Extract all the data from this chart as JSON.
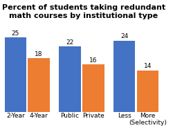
{
  "title": "Percent of students taking redundant\nmath courses by institutional type",
  "groups": [
    {
      "labels": [
        "2-Year",
        "4-Year"
      ],
      "values": [
        25,
        18
      ]
    },
    {
      "labels": [
        "Public",
        "Private"
      ],
      "values": [
        22,
        16
      ]
    },
    {
      "labels": [
        "Less",
        "More\n(Selectivity)"
      ],
      "values": [
        24,
        14
      ]
    }
  ],
  "bar_colors": [
    "#4472C4",
    "#ED7D31"
  ],
  "bar_width": 0.28,
  "ylim": [
    0,
    30
  ],
  "title_fontsize": 8.0,
  "label_fontsize": 6.5,
  "value_fontsize": 6.5,
  "background_color": "#ffffff",
  "grid_color": "#e0e0e0"
}
